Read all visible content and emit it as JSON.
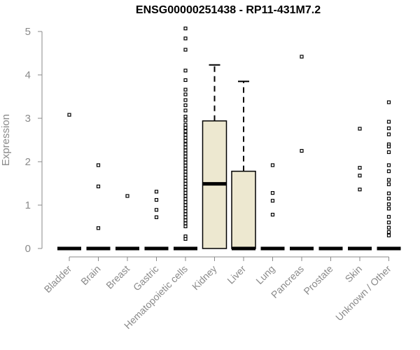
{
  "chart_data": {
    "type": "boxplot",
    "title": "ENSG00000251438 - RP11-431M7.2",
    "xlabel": "",
    "ylabel": "Expression",
    "ylim": [
      0,
      5
    ],
    "yticks": [
      "0",
      "1",
      "2",
      "3",
      "4",
      "5"
    ],
    "grid": false,
    "box_fill": "#ede8d0",
    "categories": [
      "Bladder",
      "Brain",
      "Breast",
      "Gastric",
      "Hematopoietic cells",
      "Kidney",
      "Liver",
      "Lung",
      "Pancreas",
      "Prostate",
      "Skin",
      "Unknown / Other"
    ],
    "boxes": [
      {
        "q1": 0,
        "median": 0,
        "q3": 0,
        "whisker_low": 0,
        "whisker_high": 0,
        "outliers": [
          3.08
        ]
      },
      {
        "q1": 0,
        "median": 0,
        "q3": 0,
        "whisker_low": 0,
        "whisker_high": 0,
        "outliers": [
          1.92,
          1.43,
          0.47
        ]
      },
      {
        "q1": 0,
        "median": 0,
        "q3": 0,
        "whisker_low": 0,
        "whisker_high": 0,
        "outliers": [
          1.21
        ]
      },
      {
        "q1": 0,
        "median": 0,
        "q3": 0,
        "whisker_low": 0,
        "whisker_high": 0,
        "outliers": [
          1.31,
          1.12,
          0.89,
          0.72
        ]
      },
      {
        "q1": 0,
        "median": 0,
        "q3": 0,
        "whisker_low": 0,
        "whisker_high": 0,
        "outliers": [
          5.07,
          4.84,
          4.58,
          4.1,
          3.88,
          3.66,
          3.55,
          3.42,
          3.3,
          3.18,
          3.04,
          2.95,
          2.85,
          2.78,
          2.7,
          2.62,
          2.55,
          2.48,
          2.4,
          2.33,
          2.26,
          2.19,
          2.12,
          2.05,
          1.98,
          1.91,
          1.84,
          1.77,
          1.7,
          1.63,
          1.56,
          1.49,
          1.42,
          1.35,
          1.28,
          1.21,
          1.14,
          1.07,
          1.0,
          0.93,
          0.86,
          0.79,
          0.72,
          0.65,
          0.58,
          0.51,
          0.28,
          0.22
        ]
      },
      {
        "q1": 0,
        "median": 1.49,
        "q3": 2.94,
        "whisker_low": 0,
        "whisker_high": 4.23,
        "outliers": []
      },
      {
        "q1": 0,
        "median": 0,
        "q3": 1.78,
        "whisker_low": 0,
        "whisker_high": 3.85,
        "outliers": []
      },
      {
        "q1": 0,
        "median": 0,
        "q3": 0,
        "whisker_low": 0,
        "whisker_high": 0,
        "outliers": [
          1.92,
          1.28,
          1.1,
          0.78
        ]
      },
      {
        "q1": 0,
        "median": 0,
        "q3": 0,
        "whisker_low": 0,
        "whisker_high": 0,
        "outliers": [
          4.42,
          2.25
        ]
      },
      {
        "q1": 0,
        "median": 0,
        "q3": 0,
        "whisker_low": 0,
        "whisker_high": 0,
        "outliers": []
      },
      {
        "q1": 0,
        "median": 0,
        "q3": 0,
        "whisker_low": 0,
        "whisker_high": 0,
        "outliers": [
          2.76,
          1.86,
          1.68,
          1.36
        ]
      },
      {
        "q1": 0,
        "median": 0,
        "q3": 0,
        "whisker_low": 0,
        "whisker_high": 0,
        "outliers": [
          3.37,
          2.92,
          2.77,
          2.63,
          2.4,
          2.35,
          2.22,
          1.92,
          1.78,
          1.58,
          1.48,
          1.27,
          1.15,
          1.02,
          0.92,
          0.73,
          0.6,
          0.48,
          0.38,
          0.3
        ]
      }
    ]
  }
}
